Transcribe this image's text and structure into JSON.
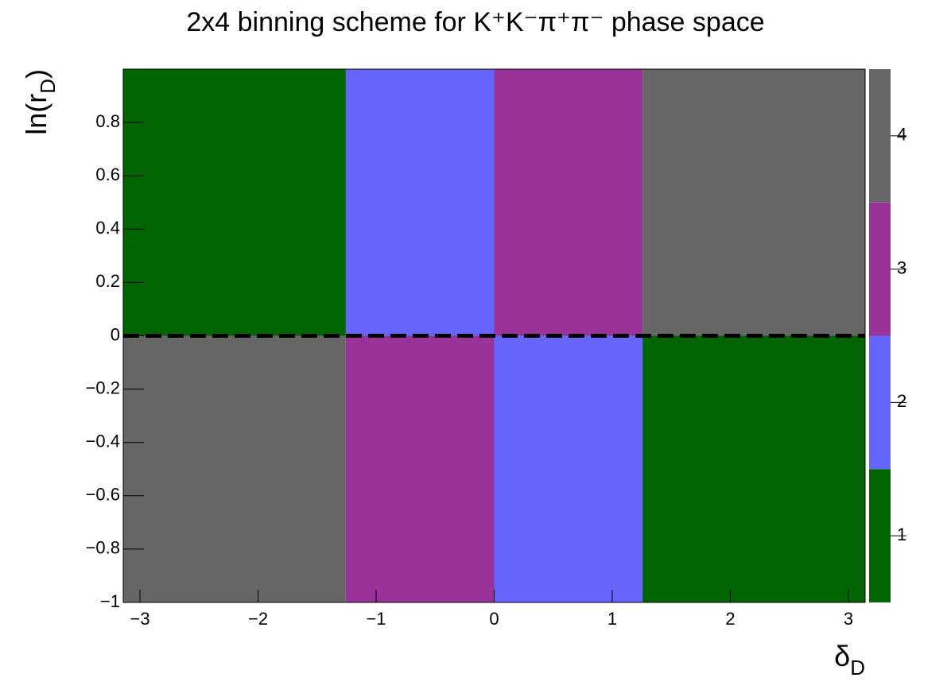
{
  "chart_data": {
    "type": "heatmap",
    "title": "2x4 binning scheme for K⁺K⁻π⁺π⁻ phase space",
    "xlabel": [
      "δ",
      "D"
    ],
    "ylabel": [
      "ln(r",
      "D",
      ")"
    ],
    "x_bins": [
      -3.1416,
      -1.2566,
      0,
      1.2566,
      3.1416
    ],
    "y_bins": [
      -1,
      0,
      1
    ],
    "z": [
      [
        4,
        3,
        2,
        1
      ],
      [
        1,
        2,
        3,
        4
      ]
    ],
    "colors": [
      "#006400",
      "#6666ff",
      "#993399",
      "#666666"
    ],
    "xlim": [
      -3.1416,
      3.1416
    ],
    "xticks": [
      {
        "value": -3,
        "label": "−3"
      },
      {
        "value": -2,
        "label": "−2"
      },
      {
        "value": -1,
        "label": "−1"
      },
      0,
      1,
      2,
      3
    ],
    "ylim": [
      -1,
      1
    ],
    "yticks": [
      {
        "value": -1,
        "label": "−1"
      },
      {
        "value": -0.8,
        "label": "−0.8"
      },
      {
        "value": -0.6,
        "label": "−0.6"
      },
      {
        "value": -0.4,
        "label": "−0.4"
      },
      {
        "value": -0.2,
        "label": "−0.2"
      },
      0,
      0.2,
      0.4,
      0.6,
      0.8
    ],
    "zlim": [
      0.5,
      4.5
    ],
    "zticks": [
      1,
      2,
      3,
      4
    ],
    "reference_line": 0
  }
}
